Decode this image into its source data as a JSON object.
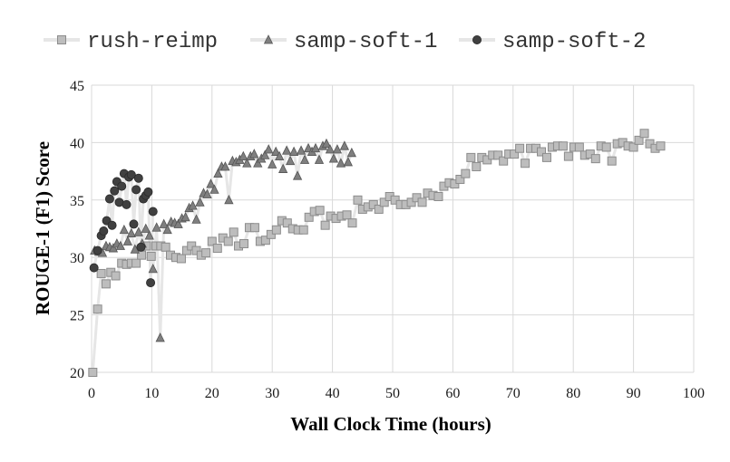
{
  "chart_data": {
    "type": "line",
    "title": "",
    "xlabel": "Wall Clock Time (hours)",
    "ylabel": "ROUGE-1 (F1) Score",
    "xlim": [
      0,
      100
    ],
    "ylim": [
      20,
      45
    ],
    "xticks": [
      0,
      10,
      20,
      30,
      40,
      50,
      60,
      70,
      80,
      90,
      100
    ],
    "yticks": [
      20,
      25,
      30,
      35,
      40,
      45
    ],
    "grid": true,
    "legend_position": "top",
    "colors": {
      "rush-reimp": "#bdbdbd",
      "samp-soft-1": "#7f7f7f",
      "samp-soft-2": "#404040",
      "line": "#e6e6e6"
    },
    "series": [
      {
        "name": "rush-reimp",
        "marker": "square",
        "points": [
          [
            0.2,
            20.0
          ],
          [
            1.0,
            25.5
          ],
          [
            1.6,
            28.6
          ],
          [
            2.4,
            27.7
          ],
          [
            3.2,
            28.7
          ],
          [
            4.0,
            28.4
          ],
          [
            5.0,
            29.5
          ],
          [
            5.8,
            29.4
          ],
          [
            6.6,
            29.5
          ],
          [
            7.4,
            29.5
          ],
          [
            8.3,
            30.2
          ],
          [
            9.1,
            31.0
          ],
          [
            9.9,
            30.1
          ],
          [
            10.7,
            31.0
          ],
          [
            11.5,
            31.0
          ],
          [
            12.3,
            30.9
          ],
          [
            13.1,
            30.2
          ],
          [
            14.0,
            30.0
          ],
          [
            14.9,
            29.9
          ],
          [
            15.8,
            30.6
          ],
          [
            16.6,
            31.0
          ],
          [
            17.4,
            30.6
          ],
          [
            18.2,
            30.2
          ],
          [
            19.0,
            30.4
          ],
          [
            20.0,
            31.4
          ],
          [
            20.9,
            30.8
          ],
          [
            21.8,
            31.7
          ],
          [
            22.7,
            31.4
          ],
          [
            23.6,
            32.2
          ],
          [
            24.4,
            31.0
          ],
          [
            25.3,
            31.2
          ],
          [
            26.2,
            32.6
          ],
          [
            27.1,
            32.6
          ],
          [
            28.0,
            31.4
          ],
          [
            28.9,
            31.5
          ],
          [
            29.8,
            32.0
          ],
          [
            30.7,
            32.4
          ],
          [
            31.6,
            33.2
          ],
          [
            32.5,
            33.0
          ],
          [
            33.4,
            32.5
          ],
          [
            34.3,
            32.4
          ],
          [
            35.2,
            32.4
          ],
          [
            36.1,
            33.5
          ],
          [
            37.0,
            34.0
          ],
          [
            37.9,
            34.1
          ],
          [
            38.8,
            32.8
          ],
          [
            39.7,
            33.6
          ],
          [
            40.6,
            33.4
          ],
          [
            41.5,
            33.6
          ],
          [
            42.4,
            33.7
          ],
          [
            43.3,
            33.0
          ],
          [
            44.2,
            35.0
          ],
          [
            45.0,
            34.2
          ],
          [
            45.9,
            34.4
          ],
          [
            46.8,
            34.6
          ],
          [
            47.7,
            34.2
          ],
          [
            48.6,
            34.8
          ],
          [
            49.5,
            35.3
          ],
          [
            50.4,
            35.0
          ],
          [
            51.3,
            34.6
          ],
          [
            52.2,
            34.6
          ],
          [
            53.1,
            34.8
          ],
          [
            54.0,
            35.2
          ],
          [
            54.9,
            34.8
          ],
          [
            55.8,
            35.6
          ],
          [
            56.7,
            35.4
          ],
          [
            57.6,
            35.3
          ],
          [
            58.5,
            36.2
          ],
          [
            59.4,
            36.5
          ],
          [
            60.3,
            36.4
          ],
          [
            61.2,
            36.8
          ],
          [
            62.1,
            37.3
          ],
          [
            63.0,
            38.7
          ],
          [
            63.9,
            37.9
          ],
          [
            64.8,
            38.7
          ],
          [
            65.7,
            38.5
          ],
          [
            66.6,
            38.9
          ],
          [
            67.5,
            38.9
          ],
          [
            68.4,
            38.4
          ],
          [
            69.3,
            39.0
          ],
          [
            70.2,
            39.0
          ],
          [
            71.1,
            39.5
          ],
          [
            72.0,
            38.2
          ],
          [
            72.9,
            39.5
          ],
          [
            73.8,
            39.5
          ],
          [
            74.7,
            39.2
          ],
          [
            75.6,
            38.7
          ],
          [
            76.5,
            39.6
          ],
          [
            77.4,
            39.7
          ],
          [
            78.3,
            39.7
          ],
          [
            79.2,
            38.8
          ],
          [
            80.1,
            39.6
          ],
          [
            81.0,
            39.6
          ],
          [
            81.9,
            38.9
          ],
          [
            82.8,
            39.0
          ],
          [
            83.7,
            38.6
          ],
          [
            84.6,
            39.7
          ],
          [
            85.5,
            39.6
          ],
          [
            86.4,
            38.4
          ],
          [
            87.3,
            39.9
          ],
          [
            88.2,
            40.0
          ],
          [
            89.1,
            39.7
          ],
          [
            90.0,
            39.6
          ],
          [
            90.9,
            40.2
          ],
          [
            91.8,
            40.8
          ],
          [
            92.7,
            39.9
          ],
          [
            93.6,
            39.5
          ],
          [
            94.5,
            39.7
          ]
        ]
      },
      {
        "name": "samp-soft-1",
        "marker": "triangle",
        "points": [
          [
            0.5,
            30.6
          ],
          [
            1.2,
            30.5
          ],
          [
            1.8,
            30.4
          ],
          [
            2.4,
            31.0
          ],
          [
            3.0,
            30.9
          ],
          [
            3.6,
            30.8
          ],
          [
            4.2,
            31.2
          ],
          [
            4.8,
            31.0
          ],
          [
            5.4,
            32.4
          ],
          [
            6.0,
            31.4
          ],
          [
            6.6,
            32.1
          ],
          [
            7.2,
            30.7
          ],
          [
            7.8,
            32.2
          ],
          [
            8.4,
            31.2
          ],
          [
            9.0,
            32.5
          ],
          [
            9.6,
            31.9
          ],
          [
            10.2,
            29.0
          ],
          [
            10.8,
            32.6
          ],
          [
            11.4,
            23.0
          ],
          [
            12.0,
            32.9
          ],
          [
            12.6,
            32.4
          ],
          [
            13.2,
            33.1
          ],
          [
            13.8,
            33.0
          ],
          [
            14.4,
            32.9
          ],
          [
            15.0,
            33.4
          ],
          [
            15.6,
            33.5
          ],
          [
            16.2,
            34.3
          ],
          [
            16.8,
            34.5
          ],
          [
            17.4,
            33.3
          ],
          [
            18.0,
            34.8
          ],
          [
            18.6,
            35.6
          ],
          [
            19.2,
            35.5
          ],
          [
            19.8,
            36.4
          ],
          [
            20.4,
            35.9
          ],
          [
            21.0,
            37.3
          ],
          [
            21.6,
            37.9
          ],
          [
            22.2,
            37.9
          ],
          [
            22.8,
            35.0
          ],
          [
            23.4,
            38.4
          ],
          [
            24.0,
            38.3
          ],
          [
            24.6,
            38.5
          ],
          [
            25.2,
            38.8
          ],
          [
            25.8,
            38.2
          ],
          [
            26.4,
            38.8
          ],
          [
            27.0,
            39.0
          ],
          [
            27.6,
            38.2
          ],
          [
            28.2,
            38.6
          ],
          [
            28.8,
            38.9
          ],
          [
            29.4,
            39.4
          ],
          [
            30.0,
            38.1
          ],
          [
            30.6,
            39.2
          ],
          [
            31.2,
            38.8
          ],
          [
            31.8,
            37.7
          ],
          [
            32.4,
            39.3
          ],
          [
            33.0,
            38.4
          ],
          [
            33.6,
            39.2
          ],
          [
            34.2,
            37.1
          ],
          [
            34.8,
            39.3
          ],
          [
            35.4,
            38.5
          ],
          [
            36.0,
            39.5
          ],
          [
            36.6,
            39.2
          ],
          [
            37.2,
            39.5
          ],
          [
            37.8,
            38.5
          ],
          [
            38.4,
            39.7
          ],
          [
            39.0,
            39.9
          ],
          [
            39.6,
            39.4
          ],
          [
            40.2,
            38.6
          ],
          [
            40.8,
            39.4
          ],
          [
            41.4,
            38.2
          ],
          [
            42.0,
            39.7
          ],
          [
            42.6,
            38.3
          ],
          [
            43.2,
            39.1
          ]
        ]
      },
      {
        "name": "samp-soft-2",
        "marker": "circle",
        "points": [
          [
            0.4,
            29.1
          ],
          [
            1.0,
            30.6
          ],
          [
            1.6,
            31.9
          ],
          [
            2.0,
            32.3
          ],
          [
            2.5,
            33.2
          ],
          [
            3.0,
            35.1
          ],
          [
            3.4,
            32.8
          ],
          [
            3.8,
            35.8
          ],
          [
            4.2,
            36.6
          ],
          [
            4.6,
            34.8
          ],
          [
            5.0,
            36.2
          ],
          [
            5.4,
            37.3
          ],
          [
            5.8,
            34.6
          ],
          [
            6.2,
            37.0
          ],
          [
            6.6,
            37.2
          ],
          [
            7.0,
            32.9
          ],
          [
            7.4,
            35.9
          ],
          [
            7.8,
            36.9
          ],
          [
            8.2,
            30.9
          ],
          [
            8.6,
            35.1
          ],
          [
            9.0,
            35.4
          ],
          [
            9.4,
            35.7
          ],
          [
            9.8,
            27.8
          ],
          [
            10.2,
            34.0
          ]
        ]
      }
    ]
  }
}
